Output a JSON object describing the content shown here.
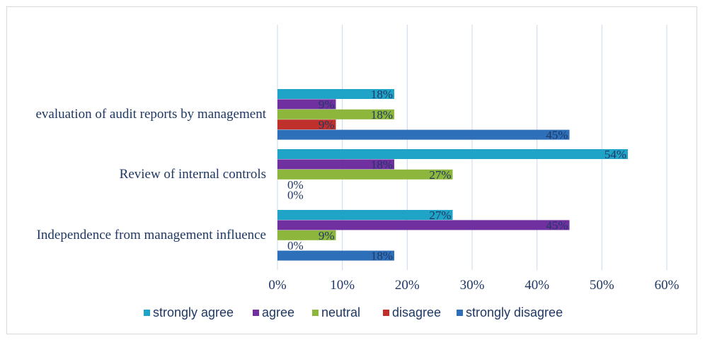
{
  "chart_data": {
    "type": "bar",
    "orientation": "horizontal",
    "categories": [
      "evaluation of audit reports by management",
      "Review of internal controls",
      "Independence from management influence"
    ],
    "series": [
      {
        "name": "strongly agree",
        "color": "#1fa3c6",
        "values": [
          18,
          54,
          27
        ],
        "labels": [
          "18%",
          "54%",
          "27%"
        ]
      },
      {
        "name": "agree",
        "color": "#7030a0",
        "values": [
          9,
          18,
          45
        ],
        "labels": [
          "9%",
          "18%",
          "45%"
        ]
      },
      {
        "name": "neutral",
        "color": "#8db63c",
        "values": [
          18,
          27,
          9
        ],
        "labels": [
          "18%",
          "27%",
          "9%"
        ]
      },
      {
        "name": "disagree",
        "color": "#c0302b",
        "values": [
          9,
          0,
          0
        ],
        "labels": [
          "9%",
          "0%",
          "0%"
        ]
      },
      {
        "name": "strongly disagree",
        "color": "#2e6fba",
        "values": [
          45,
          0,
          18
        ],
        "labels": [
          "45%",
          "0%",
          "18%"
        ]
      }
    ],
    "xlim": [
      0,
      60
    ],
    "x_ticks": [
      "0%",
      "10%",
      "20%",
      "30%",
      "40%",
      "50%",
      "60%"
    ],
    "grid": true,
    "legend": "bottom"
  }
}
